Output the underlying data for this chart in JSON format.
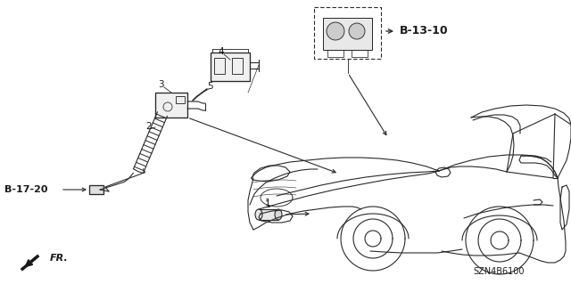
{
  "background_color": "#ffffff",
  "fig_width": 6.4,
  "fig_height": 3.19,
  "dpi": 100,
  "line_color": "#2a2a2a",
  "text_color": "#1a1a1a",
  "labels": {
    "b_13_10": "B-13-10",
    "b_17_20": "B-17-20",
    "fr": "FR.",
    "szn": "SZN4B6100",
    "num1": "1",
    "num2": "2",
    "num3": "3",
    "num4": "4",
    "num5": "5"
  }
}
